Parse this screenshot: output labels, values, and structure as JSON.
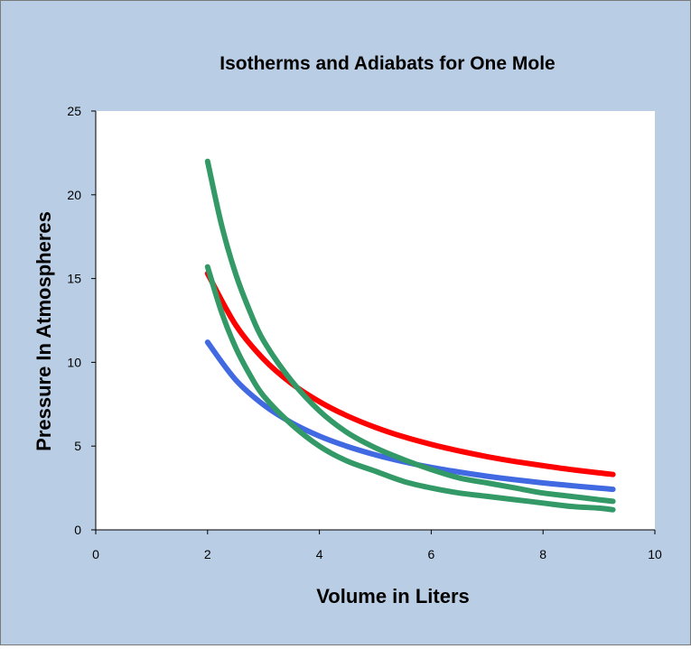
{
  "chart_data": {
    "type": "line",
    "title": "Isotherms and Adiabats for One Mole",
    "xlabel": "Volume in Liters",
    "ylabel": "Pressure In Atmospheres",
    "xlim": [
      0,
      10
    ],
    "ylim": [
      0,
      25
    ],
    "x_ticks": [
      0,
      2,
      4,
      6,
      8,
      10
    ],
    "y_ticks": [
      0,
      5,
      10,
      15,
      20,
      25
    ],
    "grid": false,
    "legend": "none",
    "series": [
      {
        "color": "#4169e1",
        "x": [
          2.0,
          2.5,
          3.0,
          3.5,
          4.0,
          4.5,
          5.0,
          5.5,
          6.0,
          6.5,
          7.0,
          7.5,
          8.0,
          8.5,
          9.0,
          9.25
        ],
        "y": [
          11.2,
          8.96,
          7.47,
          6.4,
          5.6,
          4.98,
          4.48,
          4.07,
          3.73,
          3.45,
          3.2,
          2.99,
          2.8,
          2.64,
          2.49,
          2.42
        ]
      },
      {
        "color": "#ff0000",
        "x": [
          2.0,
          2.5,
          3.0,
          3.5,
          4.0,
          4.5,
          5.0,
          5.5,
          6.0,
          6.5,
          7.0,
          7.5,
          8.0,
          8.5,
          9.0,
          9.25
        ],
        "y": [
          15.3,
          12.24,
          10.2,
          8.74,
          7.65,
          6.8,
          6.12,
          5.56,
          5.1,
          4.71,
          4.37,
          4.08,
          3.83,
          3.6,
          3.4,
          3.31
        ]
      },
      {
        "color": "#339966",
        "x": [
          2.0,
          2.25,
          2.5,
          2.75,
          3.0,
          3.5,
          4.0,
          4.5,
          5.0,
          5.5,
          6.0,
          6.5,
          7.0,
          7.5,
          8.0,
          8.5,
          9.0,
          9.25
        ],
        "y": [
          15.7,
          13.0,
          10.9,
          9.3,
          8.0,
          6.3,
          5.0,
          4.1,
          3.5,
          2.9,
          2.5,
          2.2,
          2.0,
          1.8,
          1.6,
          1.4,
          1.3,
          1.2
        ]
      },
      {
        "color": "#339966",
        "x": [
          2.0,
          2.25,
          2.5,
          2.75,
          3.0,
          3.5,
          4.0,
          4.5,
          5.0,
          5.5,
          6.0,
          6.5,
          7.0,
          7.5,
          8.0,
          8.5,
          9.0,
          9.25
        ],
        "y": [
          22.0,
          18.2,
          15.3,
          13.1,
          11.3,
          8.9,
          7.1,
          5.8,
          4.9,
          4.2,
          3.6,
          3.1,
          2.8,
          2.5,
          2.2,
          2.0,
          1.8,
          1.7
        ]
      }
    ]
  }
}
